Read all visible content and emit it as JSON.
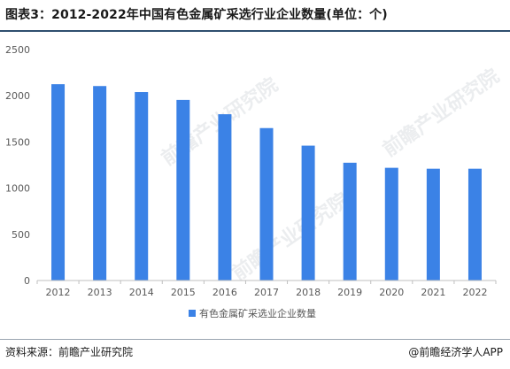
{
  "header": {
    "title": "图表3：2012-2022年中国有色金属矿采选行业企业数量(单位：个)"
  },
  "footer": {
    "source": "资料来源：前瞻产业研究院",
    "brand": "@前瞻经济学人APP"
  },
  "watermark": {
    "text": "前瞻产业研究院"
  },
  "colors": {
    "bar": "#3b82e6",
    "axis": "#bfbfbf",
    "tick_text": "#595959"
  },
  "chart_data": {
    "type": "bar",
    "categories": [
      "2012",
      "2013",
      "2014",
      "2015",
      "2016",
      "2017",
      "2018",
      "2019",
      "2020",
      "2021",
      "2022"
    ],
    "series": [
      {
        "name": "有色金属矿采选业企业数量",
        "values": [
          2125,
          2105,
          2040,
          1955,
          1800,
          1650,
          1460,
          1275,
          1220,
          1210,
          1210
        ]
      }
    ],
    "ylim": [
      0,
      2500
    ],
    "yticks": [
      0,
      500,
      1000,
      1500,
      2000,
      2500
    ],
    "grid": false,
    "legend": "bottom-center"
  }
}
